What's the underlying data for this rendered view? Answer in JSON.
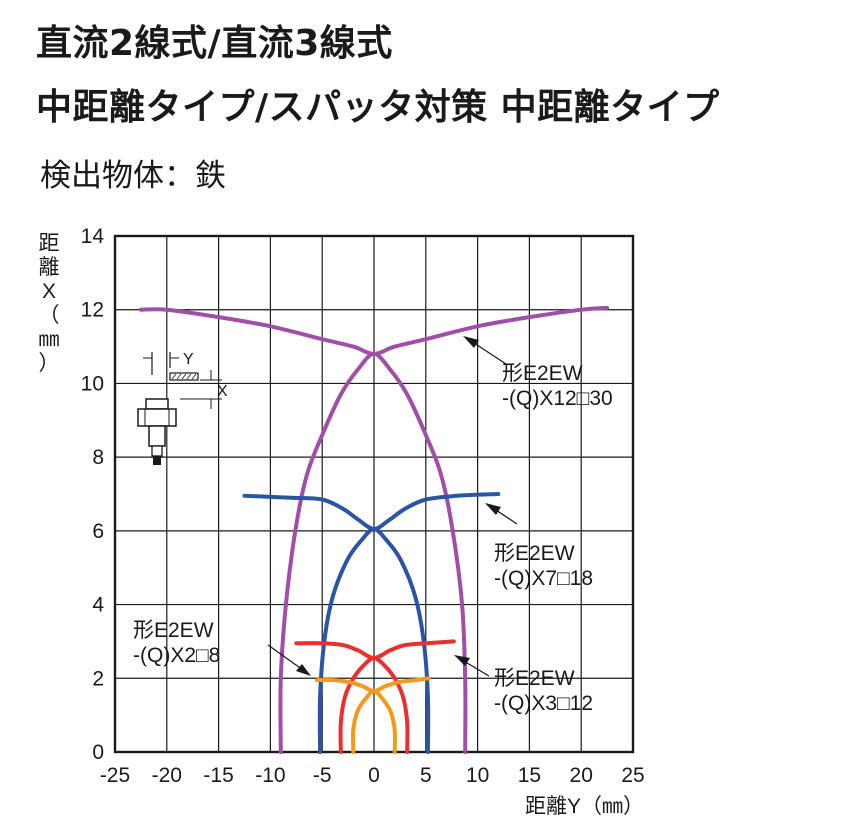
{
  "header": {
    "title_line1": "直流2線式/直流3線式",
    "title_line2": "中距離タイプ/スパッタ対策 中距離タイプ",
    "subtitle": "検出物体：鉄"
  },
  "chart_data": {
    "type": "line",
    "xlabel": "距離Y（㎜）",
    "ylabel": "距離X（㎜）",
    "xlim": [
      -25,
      25
    ],
    "ylim": [
      0,
      14
    ],
    "x_ticks": [
      "-25",
      "-20",
      "-15",
      "-10",
      "-5",
      "0",
      "5",
      "10",
      "15",
      "20",
      "25"
    ],
    "y_ticks": [
      "0",
      "2",
      "4",
      "6",
      "8",
      "10",
      "12",
      "14"
    ],
    "grid": true,
    "inset_labels": {
      "y": "Y",
      "x": "X"
    },
    "series": [
      {
        "name": "形E2EW -(Q)X12□30",
        "label_line1": "形E2EW",
        "label_line2": "-(Q)X12□30",
        "color": "#a04fa8",
        "setting_curve": [
          [
            -22.5,
            12.0
          ],
          [
            -20,
            12.0
          ],
          [
            -15,
            11.8
          ],
          [
            -10,
            11.55
          ],
          [
            -5,
            11.2
          ],
          [
            -2,
            11.0
          ],
          [
            0,
            10.8
          ],
          [
            2,
            11.0
          ],
          [
            5,
            11.2
          ],
          [
            10,
            11.55
          ],
          [
            15,
            11.8
          ],
          [
            20,
            12.0
          ],
          [
            22.5,
            12.05
          ]
        ],
        "envelope": [
          [
            -9.0,
            0
          ],
          [
            -9.0,
            2.0
          ],
          [
            -8.5,
            4.0
          ],
          [
            -7.6,
            6.0
          ],
          [
            -6.5,
            7.5
          ],
          [
            -5.0,
            8.6
          ],
          [
            -3.2,
            9.7
          ],
          [
            -1.5,
            10.4
          ],
          [
            0,
            10.8
          ],
          [
            1.5,
            10.4
          ],
          [
            3.2,
            9.7
          ],
          [
            5.0,
            8.6
          ],
          [
            6.5,
            7.5
          ],
          [
            7.6,
            6.0
          ],
          [
            8.5,
            4.0
          ],
          [
            8.8,
            2.0
          ],
          [
            8.8,
            0
          ]
        ]
      },
      {
        "name": "形E2EW -(Q)X7□18",
        "label_line1": "形E2EW",
        "label_line2": "-(Q)X7□18",
        "color": "#2a55a6",
        "setting_curve": [
          [
            -12.5,
            6.95
          ],
          [
            -8,
            6.9
          ],
          [
            -5,
            6.85
          ],
          [
            -3,
            6.6
          ],
          [
            -1.5,
            6.3
          ],
          [
            0,
            6.05
          ],
          [
            1.5,
            6.3
          ],
          [
            3,
            6.6
          ],
          [
            5,
            6.85
          ],
          [
            8,
            6.95
          ],
          [
            12,
            7.0
          ]
        ],
        "envelope": [
          [
            -5.2,
            0
          ],
          [
            -5.2,
            1.5
          ],
          [
            -4.8,
            3.0
          ],
          [
            -4.0,
            4.2
          ],
          [
            -2.6,
            5.2
          ],
          [
            -1.2,
            5.75
          ],
          [
            0,
            6.05
          ],
          [
            1.2,
            5.75
          ],
          [
            2.6,
            5.2
          ],
          [
            4.0,
            4.2
          ],
          [
            4.8,
            3.0
          ],
          [
            5.2,
            1.5
          ],
          [
            5.2,
            0
          ]
        ]
      },
      {
        "name": "形E2EW -(Q)X3□12",
        "label_line1": "形E2EW",
        "label_line2": "-(Q)X3□12",
        "color": "#e8312f",
        "setting_curve": [
          [
            -7.5,
            2.95
          ],
          [
            -5,
            2.95
          ],
          [
            -3,
            2.9
          ],
          [
            -1.5,
            2.75
          ],
          [
            0,
            2.55
          ],
          [
            1.5,
            2.75
          ],
          [
            3,
            2.9
          ],
          [
            5,
            2.95
          ],
          [
            7.7,
            3.0
          ]
        ],
        "envelope": [
          [
            -3.2,
            0
          ],
          [
            -3.2,
            0.8
          ],
          [
            -2.8,
            1.5
          ],
          [
            -2.0,
            2.0
          ],
          [
            -1.0,
            2.35
          ],
          [
            0,
            2.55
          ],
          [
            1.0,
            2.35
          ],
          [
            2.0,
            2.0
          ],
          [
            2.8,
            1.5
          ],
          [
            3.2,
            0.8
          ],
          [
            3.2,
            0
          ]
        ]
      },
      {
        "name": "形E2EW -(Q)X2□8",
        "label_line1": "形E2EW",
        "label_line2": "-(Q)X2□8",
        "color": "#f39a1e",
        "setting_curve": [
          [
            -5.5,
            1.95
          ],
          [
            -4,
            1.95
          ],
          [
            -2.5,
            1.9
          ],
          [
            -1.2,
            1.8
          ],
          [
            0,
            1.65
          ],
          [
            1.2,
            1.8
          ],
          [
            2.5,
            1.9
          ],
          [
            4,
            1.95
          ],
          [
            5.3,
            2.0
          ]
        ],
        "envelope": [
          [
            -2.0,
            0
          ],
          [
            -2.0,
            0.6
          ],
          [
            -1.6,
            1.1
          ],
          [
            -0.8,
            1.45
          ],
          [
            0,
            1.65
          ],
          [
            0.8,
            1.45
          ],
          [
            1.6,
            1.1
          ],
          [
            2.0,
            0.6
          ],
          [
            2.0,
            0
          ]
        ]
      }
    ]
  }
}
